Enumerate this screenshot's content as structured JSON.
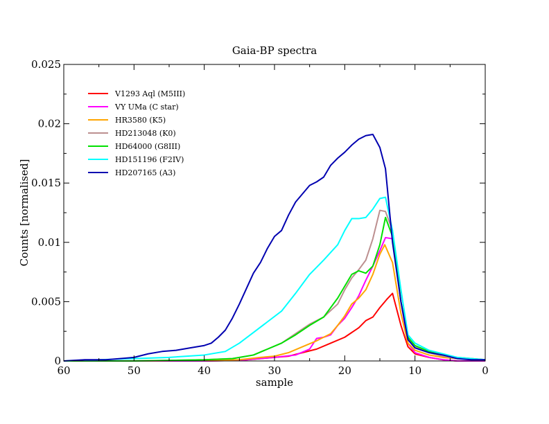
{
  "chart_data": {
    "type": "line",
    "title": "Gaia-BP spectra",
    "xlabel": "sample",
    "ylabel": "Counts [normalised]",
    "xlim": [
      60,
      0
    ],
    "ylim": [
      0,
      0.025
    ],
    "x_reversed": true,
    "xticks": [
      "60",
      "50",
      "40",
      "30",
      "20",
      "10",
      "0"
    ],
    "yticks": [
      "0",
      "0.005",
      "0.01",
      "0.015",
      "0.02",
      "0.025"
    ],
    "grid": false,
    "legend_position": "top-left",
    "series": [
      {
        "name": "V1293 Aql (M5III)",
        "color": "#ff0000",
        "points": [
          [
            60,
            0
          ],
          [
            50,
            0
          ],
          [
            40,
            0
          ],
          [
            35,
            5e-05
          ],
          [
            32,
            0.0002
          ],
          [
            30,
            0.0003
          ],
          [
            28,
            0.0004
          ],
          [
            26,
            0.0007
          ],
          [
            24,
            0.001
          ],
          [
            22,
            0.0015
          ],
          [
            20,
            0.002
          ],
          [
            18,
            0.0028
          ],
          [
            17,
            0.0034
          ],
          [
            16,
            0.0037
          ],
          [
            15,
            0.0045
          ],
          [
            14,
            0.0052
          ],
          [
            13.2,
            0.0057
          ],
          [
            12,
            0.003
          ],
          [
            11,
            0.0012
          ],
          [
            10,
            0.0006
          ],
          [
            8,
            0.0003
          ],
          [
            6,
            0.0001
          ],
          [
            4,
            0
          ],
          [
            0,
            0
          ]
        ]
      },
      {
        "name": "VY UMa (C star)",
        "color": "#ff00ff",
        "points": [
          [
            60,
            0
          ],
          [
            50,
            0
          ],
          [
            40,
            0
          ],
          [
            35,
            5e-05
          ],
          [
            30,
            0.0003
          ],
          [
            27,
            0.0005
          ],
          [
            25,
            0.001
          ],
          [
            24,
            0.0019
          ],
          [
            23,
            0.002
          ],
          [
            22,
            0.0022
          ],
          [
            21,
            0.003
          ],
          [
            20,
            0.0036
          ],
          [
            19,
            0.0045
          ],
          [
            18,
            0.0055
          ],
          [
            17,
            0.0068
          ],
          [
            16,
            0.008
          ],
          [
            15,
            0.0093
          ],
          [
            14.2,
            0.0104
          ],
          [
            13.2,
            0.0103
          ],
          [
            12,
            0.005
          ],
          [
            11,
            0.0015
          ],
          [
            10,
            0.0007
          ],
          [
            8,
            0.0003
          ],
          [
            6,
            0.0001
          ],
          [
            4,
            0
          ],
          [
            0,
            0
          ]
        ]
      },
      {
        "name": "HR3580 (K5)",
        "color": "#ffa500",
        "points": [
          [
            60,
            0
          ],
          [
            50,
            0
          ],
          [
            40,
            5e-05
          ],
          [
            35,
            0.0001
          ],
          [
            32,
            0.0003
          ],
          [
            30,
            0.0004
          ],
          [
            28,
            0.0007
          ],
          [
            26,
            0.0012
          ],
          [
            24,
            0.0017
          ],
          [
            22,
            0.0023
          ],
          [
            21,
            0.003
          ],
          [
            20,
            0.0038
          ],
          [
            19,
            0.0048
          ],
          [
            18,
            0.0053
          ],
          [
            17,
            0.006
          ],
          [
            16,
            0.0073
          ],
          [
            15,
            0.009
          ],
          [
            14.3,
            0.0098
          ],
          [
            13.2,
            0.0083
          ],
          [
            12,
            0.004
          ],
          [
            11,
            0.0015
          ],
          [
            10,
            0.0009
          ],
          [
            8,
            0.0005
          ],
          [
            6,
            0.0003
          ],
          [
            4,
            0.0002
          ],
          [
            0,
            0.0001
          ]
        ]
      },
      {
        "name": "HD213048 (K0)",
        "color": "#bc8f8f",
        "points": [
          [
            60,
            0
          ],
          [
            50,
            0
          ],
          [
            40,
            0.0001
          ],
          [
            36,
            0.0002
          ],
          [
            33,
            0.0005
          ],
          [
            31,
            0.001
          ],
          [
            29,
            0.0015
          ],
          [
            27,
            0.0023
          ],
          [
            25,
            0.0031
          ],
          [
            23,
            0.0037
          ],
          [
            21,
            0.0048
          ],
          [
            20,
            0.006
          ],
          [
            19,
            0.007
          ],
          [
            18,
            0.0077
          ],
          [
            17,
            0.0085
          ],
          [
            16,
            0.0103
          ],
          [
            15,
            0.0127
          ],
          [
            14.2,
            0.0126
          ],
          [
            13.2,
            0.011
          ],
          [
            12,
            0.005
          ],
          [
            11,
            0.002
          ],
          [
            10,
            0.0012
          ],
          [
            8,
            0.0007
          ],
          [
            6,
            0.0004
          ],
          [
            4,
            0.0002
          ],
          [
            0,
            0.0001
          ]
        ]
      },
      {
        "name": "HD64000 (G8III)",
        "color": "#00e000",
        "points": [
          [
            60,
            0
          ],
          [
            50,
            0
          ],
          [
            40,
            0.0001
          ],
          [
            36,
            0.0002
          ],
          [
            33,
            0.0005
          ],
          [
            31,
            0.001
          ],
          [
            29,
            0.0015
          ],
          [
            27,
            0.0022
          ],
          [
            25,
            0.003
          ],
          [
            23,
            0.0037
          ],
          [
            21,
            0.0053
          ],
          [
            20,
            0.0063
          ],
          [
            19,
            0.0073
          ],
          [
            18,
            0.0076
          ],
          [
            17,
            0.0074
          ],
          [
            16,
            0.008
          ],
          [
            15,
            0.0098
          ],
          [
            14.2,
            0.0121
          ],
          [
            13.2,
            0.0105
          ],
          [
            12,
            0.005
          ],
          [
            11,
            0.002
          ],
          [
            10,
            0.0013
          ],
          [
            8,
            0.0008
          ],
          [
            6,
            0.0005
          ],
          [
            4,
            0.0003
          ],
          [
            0,
            0.0001
          ]
        ]
      },
      {
        "name": "HD151196 (F2IV)",
        "color": "#00ffff",
        "points": [
          [
            60,
            0
          ],
          [
            55,
            0.0001
          ],
          [
            50,
            0.0002
          ],
          [
            45,
            0.0003
          ],
          [
            40,
            0.0005
          ],
          [
            37,
            0.0008
          ],
          [
            35,
            0.0015
          ],
          [
            33,
            0.0024
          ],
          [
            31,
            0.0033
          ],
          [
            29,
            0.0042
          ],
          [
            27,
            0.0057
          ],
          [
            25,
            0.0073
          ],
          [
            23,
            0.0085
          ],
          [
            21,
            0.0098
          ],
          [
            20,
            0.011
          ],
          [
            19,
            0.012
          ],
          [
            18,
            0.012
          ],
          [
            17,
            0.0121
          ],
          [
            16,
            0.0128
          ],
          [
            15,
            0.0137
          ],
          [
            14.2,
            0.0138
          ],
          [
            13.2,
            0.011
          ],
          [
            12,
            0.006
          ],
          [
            11,
            0.0022
          ],
          [
            10,
            0.0015
          ],
          [
            8,
            0.0009
          ],
          [
            6,
            0.0006
          ],
          [
            4,
            0.0003
          ],
          [
            2,
            0.0002
          ],
          [
            0,
            0.0001
          ]
        ]
      },
      {
        "name": "HD207165 (A3)",
        "color": "#0000b0",
        "points": [
          [
            60,
            0
          ],
          [
            57,
            0.0001
          ],
          [
            54,
            0.0001
          ],
          [
            52,
            0.0002
          ],
          [
            50,
            0.0003
          ],
          [
            48,
            0.0006
          ],
          [
            46,
            0.0008
          ],
          [
            44,
            0.0009
          ],
          [
            42,
            0.0011
          ],
          [
            40,
            0.0013
          ],
          [
            39,
            0.0015
          ],
          [
            38,
            0.002
          ],
          [
            37,
            0.0026
          ],
          [
            36,
            0.0036
          ],
          [
            35,
            0.0048
          ],
          [
            34,
            0.0061
          ],
          [
            33,
            0.0074
          ],
          [
            32,
            0.0083
          ],
          [
            31,
            0.0095
          ],
          [
            30,
            0.0105
          ],
          [
            29,
            0.011
          ],
          [
            28,
            0.0123
          ],
          [
            27,
            0.0134
          ],
          [
            26,
            0.0141
          ],
          [
            25,
            0.0148
          ],
          [
            24,
            0.0151
          ],
          [
            23,
            0.0155
          ],
          [
            22,
            0.0165
          ],
          [
            21,
            0.0171
          ],
          [
            20,
            0.0176
          ],
          [
            19,
            0.0182
          ],
          [
            18,
            0.0187
          ],
          [
            17,
            0.019
          ],
          [
            16,
            0.0191
          ],
          [
            15,
            0.018
          ],
          [
            14.2,
            0.0162
          ],
          [
            13.2,
            0.01
          ],
          [
            12,
            0.005
          ],
          [
            11,
            0.0018
          ],
          [
            10,
            0.0011
          ],
          [
            8,
            0.0007
          ],
          [
            6,
            0.0005
          ],
          [
            4,
            0.0002
          ],
          [
            2,
            0.0001
          ],
          [
            0,
            0.0001
          ]
        ]
      }
    ]
  }
}
